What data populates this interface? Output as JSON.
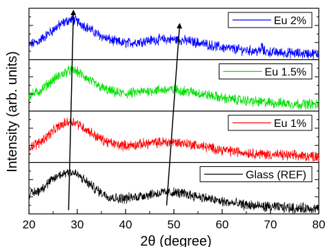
{
  "chart_data": {
    "type": "line",
    "title": "",
    "xlabel": "2θ (degree)",
    "ylabel": "Intensity (arb. units)",
    "xlim": [
      20,
      80
    ],
    "x_ticks": [
      "20",
      "30",
      "40",
      "50",
      "60",
      "70",
      "80"
    ],
    "stacked_panels": true,
    "y_tick_labels_shown": false,
    "legend_position": "top-right of each panel",
    "series": [
      {
        "name": "Eu 2%",
        "color": "#0000ff",
        "x": [
          20,
          22,
          24,
          26,
          28,
          29,
          30,
          32,
          34,
          36,
          38,
          40,
          42,
          44,
          46,
          48,
          50,
          52,
          54,
          56,
          58,
          60,
          62,
          64,
          66,
          68,
          68.2,
          68.5,
          70,
          72,
          74,
          76,
          78,
          80
        ],
        "y": [
          0.28,
          0.36,
          0.52,
          0.68,
          0.8,
          0.82,
          0.78,
          0.66,
          0.52,
          0.42,
          0.35,
          0.32,
          0.34,
          0.37,
          0.39,
          0.4,
          0.4,
          0.38,
          0.35,
          0.31,
          0.27,
          0.23,
          0.2,
          0.18,
          0.16,
          0.15,
          0.3,
          0.15,
          0.13,
          0.12,
          0.11,
          0.1,
          0.1,
          0.09
        ]
      },
      {
        "name": "Eu 1.5%",
        "color": "#00e000",
        "x": [
          20,
          22,
          24,
          26,
          28,
          29,
          30,
          32,
          34,
          36,
          38,
          40,
          42,
          44,
          46,
          48,
          50,
          52,
          54,
          56,
          58,
          60,
          62,
          64,
          66,
          68,
          70,
          72,
          74,
          76,
          78,
          80
        ],
        "y": [
          0.3,
          0.38,
          0.55,
          0.7,
          0.82,
          0.84,
          0.8,
          0.66,
          0.52,
          0.42,
          0.36,
          0.34,
          0.36,
          0.39,
          0.41,
          0.42,
          0.42,
          0.4,
          0.37,
          0.33,
          0.29,
          0.25,
          0.22,
          0.2,
          0.18,
          0.16,
          0.15,
          0.14,
          0.13,
          0.12,
          0.12,
          0.11
        ]
      },
      {
        "name": "Eu 1%",
        "color": "#ff0000",
        "x": [
          20,
          22,
          24,
          26,
          28,
          29,
          30,
          32,
          34,
          36,
          38,
          40,
          42,
          44,
          46,
          48,
          50,
          52,
          54,
          56,
          58,
          60,
          62,
          64,
          66,
          68,
          70,
          72,
          74,
          76,
          78,
          80
        ],
        "y": [
          0.3,
          0.38,
          0.55,
          0.72,
          0.83,
          0.84,
          0.8,
          0.66,
          0.52,
          0.41,
          0.35,
          0.33,
          0.34,
          0.37,
          0.39,
          0.4,
          0.4,
          0.38,
          0.35,
          0.31,
          0.27,
          0.24,
          0.21,
          0.19,
          0.17,
          0.15,
          0.14,
          0.13,
          0.12,
          0.11,
          0.11,
          0.1
        ]
      },
      {
        "name": "Glass (REF)",
        "color": "#000000",
        "x": [
          20,
          22,
          24,
          26,
          28,
          29,
          30,
          32,
          34,
          36,
          38,
          40,
          42,
          44,
          46,
          48,
          50,
          52,
          54,
          56,
          58,
          60,
          62,
          64,
          66,
          68,
          70,
          72,
          74,
          76,
          78,
          80
        ],
        "y": [
          0.38,
          0.46,
          0.62,
          0.78,
          0.86,
          0.85,
          0.8,
          0.64,
          0.48,
          0.36,
          0.3,
          0.3,
          0.33,
          0.37,
          0.4,
          0.42,
          0.42,
          0.4,
          0.36,
          0.32,
          0.27,
          0.23,
          0.2,
          0.17,
          0.15,
          0.13,
          0.12,
          0.11,
          0.1,
          0.09,
          0.09,
          0.08
        ]
      }
    ],
    "annotations": [
      {
        "type": "arrow",
        "from": {
          "x": 28.2,
          "panel": 4,
          "y": 0.05
        },
        "to": {
          "x": 29.2,
          "panel": 1,
          "y": 1.0
        }
      },
      {
        "type": "arrow",
        "from": {
          "x": 48.5,
          "panel": 4,
          "y": 0.15
        },
        "to": {
          "x": 51.2,
          "panel": 1,
          "y": 0.72
        }
      }
    ]
  }
}
